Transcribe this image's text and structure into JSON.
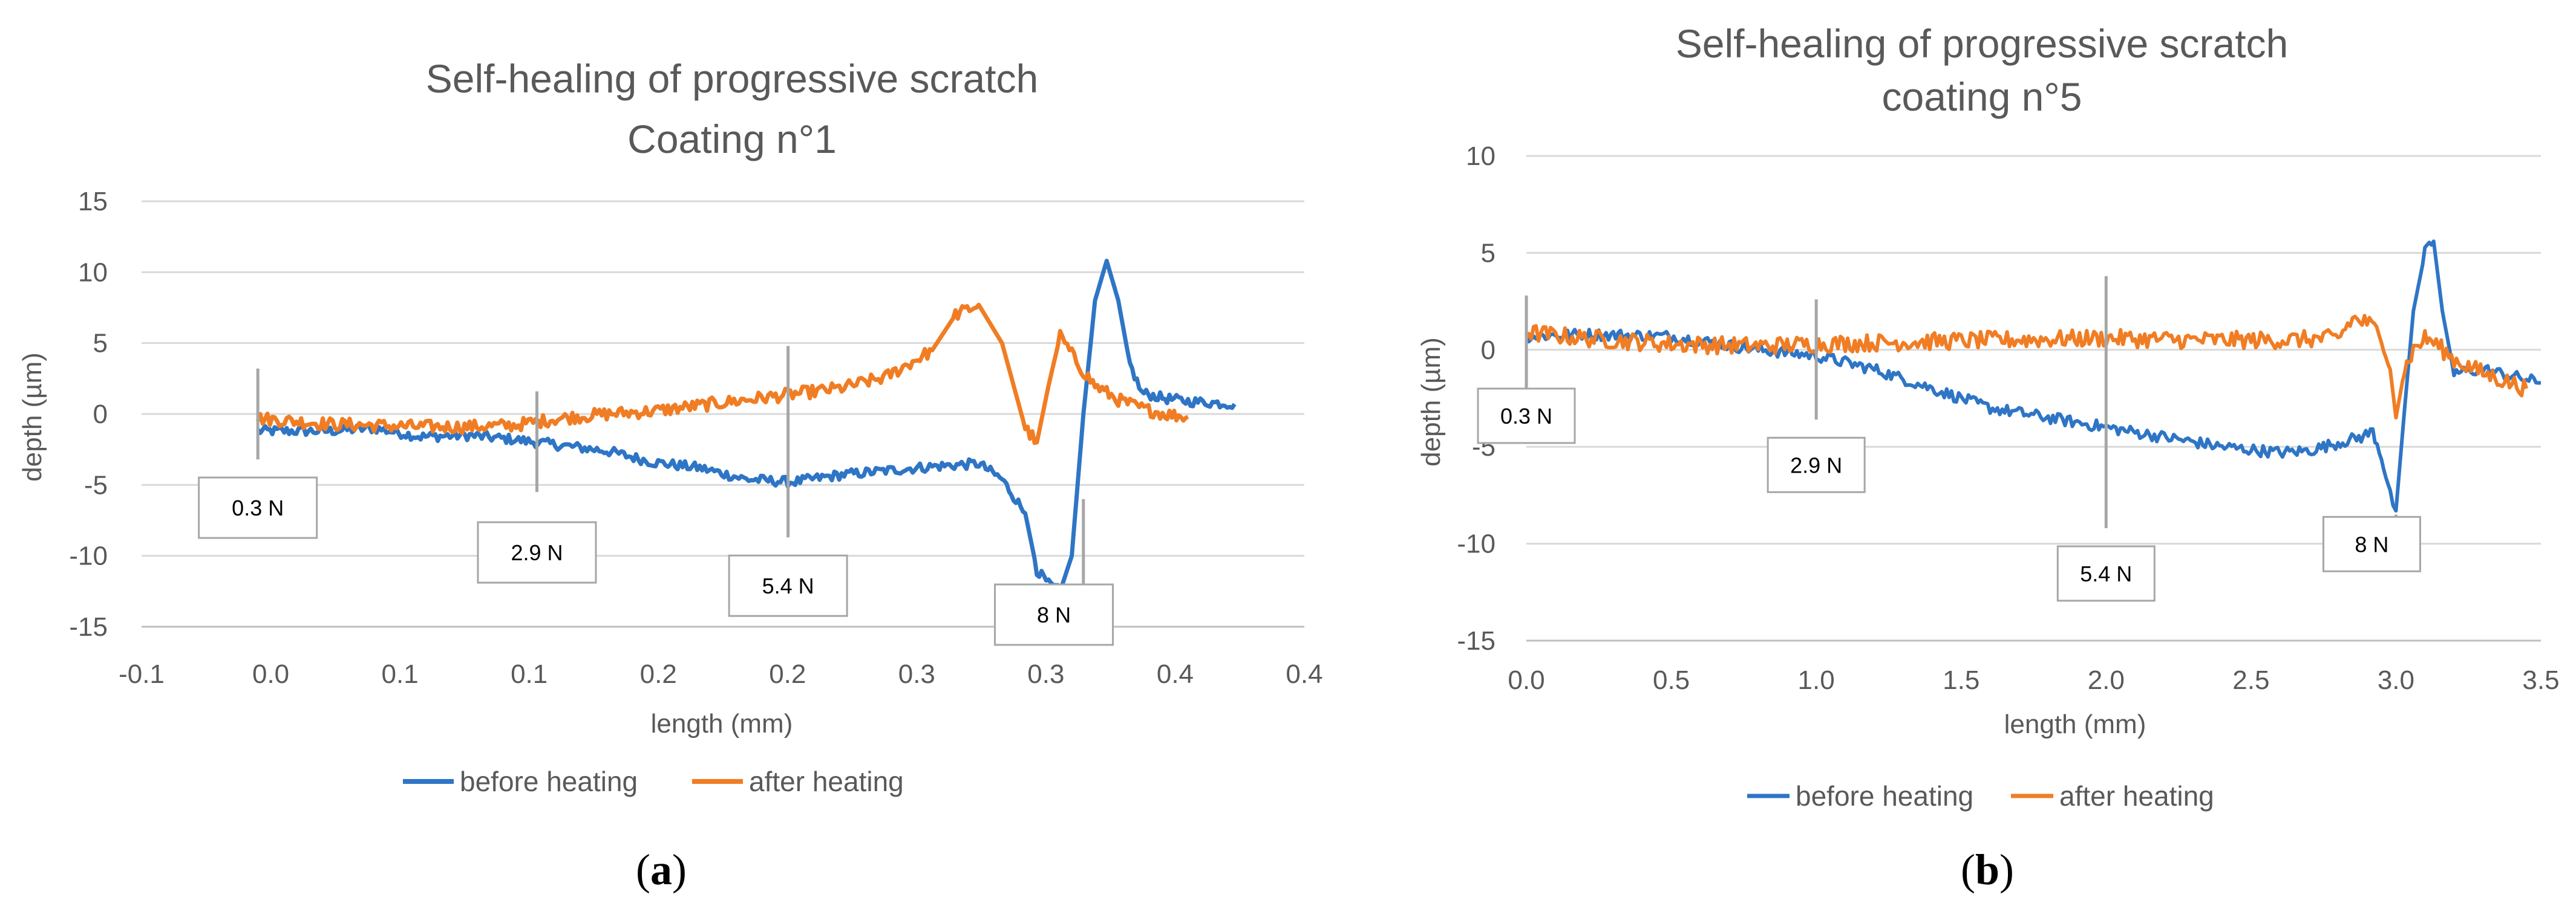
{
  "colors": {
    "before": "#2e75c5",
    "after": "#f07d24",
    "text": "#595959"
  },
  "chart_data": [
    {
      "type": "line",
      "panel_caption": "a",
      "title": [
        "Self-healing of progressive scratch",
        "Coating n°1"
      ],
      "xlabel": "length (mm)",
      "ylabel": "depth (µm)",
      "xlim": [
        -0.1,
        0.4
      ],
      "ylim": [
        -15,
        15
      ],
      "yticks": [
        15,
        10,
        5,
        0,
        -5,
        -10,
        -15
      ],
      "ytick_labels": [
        "15",
        "10",
        "5",
        "0",
        "-5",
        "-10",
        "-15"
      ],
      "xtick_labels": [
        "-0.1",
        "0.0",
        "0.1",
        "0.1",
        "0.2",
        "0.2",
        "0.3",
        "0.3",
        "0.4",
        "0.4"
      ],
      "legend": [
        "before heating",
        "after heating"
      ],
      "series": [
        {
          "name": "before heating",
          "noise": 0.35,
          "x": [
            -0.05,
            -0.02,
            0.0,
            0.02,
            0.04,
            0.06,
            0.08,
            0.1,
            0.12,
            0.14,
            0.16,
            0.18,
            0.2,
            0.22,
            0.24,
            0.26,
            0.27,
            0.28,
            0.285,
            0.29,
            0.295,
            0.3,
            0.305,
            0.31,
            0.315,
            0.32,
            0.325,
            0.33,
            0.335,
            0.34,
            0.35,
            0.37
          ],
          "y": [
            -1.2,
            -1.2,
            -1.0,
            -1.6,
            -1.5,
            -1.8,
            -2.2,
            -2.6,
            -3.4,
            -3.8,
            -4.6,
            -4.8,
            -4.3,
            -4.0,
            -3.7,
            -3.5,
            -4.6,
            -7.0,
            -11.0,
            -12.0,
            -12.5,
            -10.0,
            0.0,
            8.0,
            10.8,
            8.0,
            3.5,
            1.5,
            1.3,
            1.1,
            0.9,
            0.7
          ]
        },
        {
          "name": "after heating",
          "noise": 0.45,
          "x": [
            -0.05,
            -0.02,
            0.0,
            0.02,
            0.04,
            0.06,
            0.08,
            0.1,
            0.12,
            0.14,
            0.16,
            0.18,
            0.2,
            0.22,
            0.24,
            0.25,
            0.26,
            0.27,
            0.275,
            0.28,
            0.285,
            0.29,
            0.295,
            0.3,
            0.305,
            0.31,
            0.32,
            0.33,
            0.34,
            0.35
          ],
          "y": [
            -0.3,
            -0.7,
            -0.8,
            -0.9,
            -0.9,
            -0.8,
            -0.3,
            0.0,
            0.2,
            0.6,
            1.0,
            1.4,
            1.8,
            2.6,
            4.5,
            7.0,
            7.7,
            5.0,
            2.0,
            -1.0,
            -2.0,
            2.0,
            5.5,
            4.2,
            3.0,
            2.0,
            1.0,
            0.4,
            0.0,
            -0.2
          ]
        }
      ],
      "annotations": [
        {
          "label": "0.3 N",
          "x": -0.05,
          "line_top": 3.2,
          "line_bottom": -3.2
        },
        {
          "label": "2.9 N",
          "x": 0.07,
          "line_top": 1.6,
          "line_bottom": -5.5
        },
        {
          "label": "5.4 N",
          "x": 0.178,
          "line_top": 4.8,
          "line_bottom": -8.7
        },
        {
          "label": "8 N",
          "x": 0.305,
          "line_top": -6.0,
          "line_bottom": -15.0
        }
      ]
    },
    {
      "type": "line",
      "panel_caption": "b",
      "title": [
        "Self-healing of progressive scratch",
        "coating n°5"
      ],
      "xlabel": "length (mm)",
      "ylabel": "depth (µm)",
      "xlim": [
        0.0,
        3.5
      ],
      "ylim": [
        -15,
        10
      ],
      "yticks": [
        10,
        5,
        0,
        -5,
        -10,
        -15
      ],
      "ytick_labels": [
        "10",
        "5",
        "0",
        "-5",
        "-10",
        "-15"
      ],
      "xtick_labels": [
        "0.0",
        "0.5",
        "1.0",
        "1.5",
        "2.0",
        "2.5",
        "3.0",
        "3.5"
      ],
      "legend": [
        "before heating",
        "after heating"
      ],
      "series": [
        {
          "name": "before heating",
          "noise": 0.3,
          "x": [
            0.0,
            0.2,
            0.5,
            0.8,
            1.0,
            1.2,
            1.4,
            1.6,
            1.8,
            2.0,
            2.2,
            2.4,
            2.6,
            2.7,
            2.8,
            2.88,
            2.92,
            2.95,
            2.98,
            3.0,
            3.03,
            3.06,
            3.1,
            3.13,
            3.16,
            3.2,
            3.3,
            3.5
          ],
          "y": [
            0.7,
            0.8,
            0.7,
            0.0,
            -0.3,
            -1.0,
            -2.0,
            -3.0,
            -3.5,
            -4.0,
            -4.5,
            -5.0,
            -5.3,
            -5.2,
            -4.8,
            -4.5,
            -4.2,
            -5.5,
            -7.5,
            -8.3,
            -3.0,
            2.0,
            5.0,
            5.6,
            2.0,
            -1.2,
            -1.0,
            -1.7
          ]
        },
        {
          "name": "after heating",
          "noise": 0.45,
          "x": [
            0.0,
            0.2,
            0.5,
            0.8,
            1.0,
            1.3,
            1.6,
            2.0,
            2.3,
            2.6,
            2.8,
            2.85,
            2.9,
            2.95,
            2.98,
            3.0,
            3.03,
            3.06,
            3.1,
            3.13,
            3.2,
            3.3,
            3.45
          ],
          "y": [
            0.9,
            0.6,
            0.3,
            0.2,
            0.3,
            0.4,
            0.5,
            0.6,
            0.5,
            0.5,
            0.6,
            1.6,
            1.4,
            0.8,
            -1.0,
            -3.5,
            -1.0,
            0.0,
            0.6,
            0.4,
            -0.5,
            -1.2,
            -2.0
          ]
        }
      ],
      "annotations": [
        {
          "label": "0.3 N",
          "x": 0.0,
          "line_top": 2.8,
          "line_bottom": -2.0
        },
        {
          "label": "2.9 N",
          "x": 1.0,
          "line_top": 2.6,
          "line_bottom": -3.6
        },
        {
          "label": "5.4 N",
          "x": 2.0,
          "line_top": 3.8,
          "line_bottom": -9.2
        },
        {
          "label": "8 N",
          "x": 3.0,
          "line_top": -8.5,
          "line_bottom": -10.8
        }
      ]
    }
  ]
}
